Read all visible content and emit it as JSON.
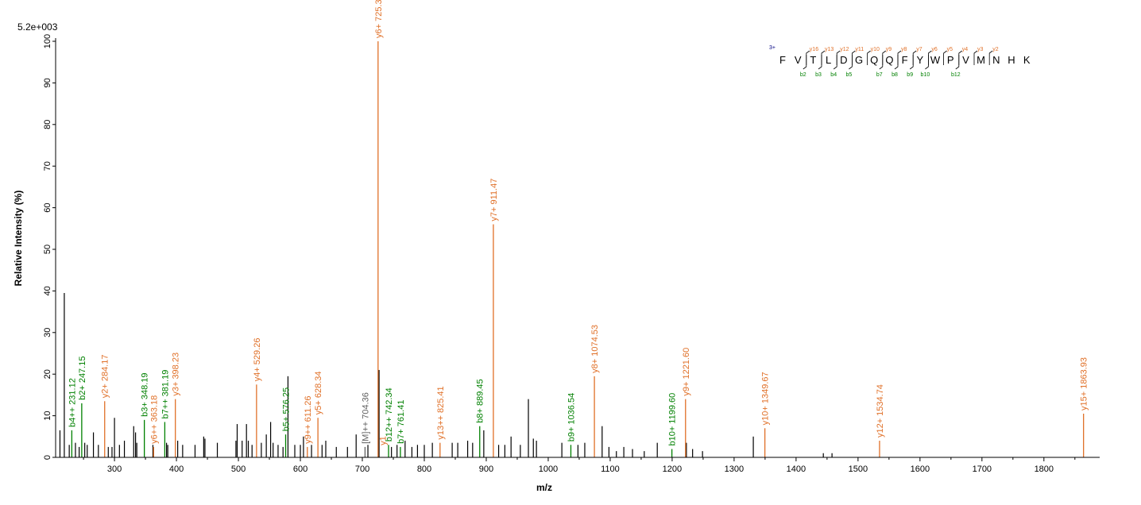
{
  "chart_data": {
    "type": "bar",
    "scale_max_label": "5.2e+003",
    "ylabel": "Relative   Intensity (%)",
    "xlabel": "m/z",
    "xlim": [
      205,
      1890
    ],
    "ylim": [
      0,
      100
    ],
    "x_ticks": [
      300,
      400,
      500,
      600,
      700,
      800,
      900,
      1000,
      1100,
      1200,
      1300,
      1400,
      1500,
      1600,
      1700,
      1800
    ],
    "y_ticks": [
      0,
      10,
      20,
      30,
      40,
      50,
      60,
      70,
      80,
      90,
      100
    ],
    "colors": {
      "unassigned": "#000000",
      "b_ion": "#008000",
      "y_ion": "#e07028",
      "precursor": "#606060",
      "charge": "#000080"
    },
    "annotated_peaks": [
      {
        "mz": 231.12,
        "intensity": 6.5,
        "ion": "b",
        "label": "b4++ 231.12"
      },
      {
        "mz": 247.15,
        "intensity": 13,
        "ion": "b",
        "label": "b2+ 247.15"
      },
      {
        "mz": 284.17,
        "intensity": 13.5,
        "ion": "y",
        "label": "y2+ 284.17"
      },
      {
        "mz": 348.19,
        "intensity": 9,
        "ion": "b",
        "label": "b3+ 348.19"
      },
      {
        "mz": 363.18,
        "intensity": 2.5,
        "ion": "y",
        "label": "y6++ 363.18"
      },
      {
        "mz": 381.19,
        "intensity": 8.5,
        "ion": "b",
        "label": "b7++ 381.19"
      },
      {
        "mz": 398.23,
        "intensity": 14,
        "ion": "y",
        "label": "y3+ 398.23"
      },
      {
        "mz": 529.26,
        "intensity": 17.5,
        "ion": "y",
        "label": "y4+ 529.26"
      },
      {
        "mz": 576.25,
        "intensity": 5.5,
        "ion": "b",
        "label": "b5+ 576.25"
      },
      {
        "mz": 611.26,
        "intensity": 2.5,
        "ion": "y",
        "label": "y9++ 611.26"
      },
      {
        "mz": 628.34,
        "intensity": 9.5,
        "ion": "y",
        "label": "y5+ 628.34"
      },
      {
        "mz": 704.36,
        "intensity": 2.5,
        "ion": "precursor",
        "label": "[M]++ 704.36"
      },
      {
        "mz": 725.39,
        "intensity": 100,
        "ion": "y",
        "label": "y6+ 725.39"
      },
      {
        "mz": 742.34,
        "intensity": 3,
        "ion": "b",
        "label": "b12++ 742.34"
      },
      {
        "mz": 761.41,
        "intensity": 2.5,
        "ion": "b",
        "label": "b7+ 761.41"
      },
      {
        "mz": 825.41,
        "intensity": 3.5,
        "ion": "y",
        "label": "y13++ 825.41"
      },
      {
        "mz": 889.45,
        "intensity": 7.5,
        "ion": "b",
        "label": "b8+ 889.45"
      },
      {
        "mz": 911.47,
        "intensity": 56,
        "ion": "y",
        "label": "y7+ 911.47"
      },
      {
        "mz": 1036.54,
        "intensity": 3,
        "ion": "b",
        "label": "b9+ 1036.54"
      },
      {
        "mz": 1074.53,
        "intensity": 19.5,
        "ion": "y",
        "label": "y8+ 1074.53"
      },
      {
        "mz": 1199.6,
        "intensity": 2,
        "ion": "b",
        "label": "b10+ 1199.60"
      },
      {
        "mz": 1221.6,
        "intensity": 14,
        "ion": "y",
        "label": "y9+ 1221.60"
      },
      {
        "mz": 1349.67,
        "intensity": 7,
        "ion": "y",
        "label": "y10+ 1349.67"
      },
      {
        "mz": 1534.74,
        "intensity": 4,
        "ion": "y",
        "label": "y12+ 1534.74"
      },
      {
        "mz": 1863.93,
        "intensity": 10.5,
        "ion": "y",
        "label": "y15+ 1863.93"
      }
    ],
    "small_annotation": {
      "mz": 733,
      "label": "y1"
    },
    "unassigned_peaks": [
      {
        "mz": 212,
        "intensity": 6.5
      },
      {
        "mz": 219,
        "intensity": 39.5
      },
      {
        "mz": 227,
        "intensity": 3
      },
      {
        "mz": 237,
        "intensity": 3.5
      },
      {
        "mz": 243,
        "intensity": 2.5
      },
      {
        "mz": 252,
        "intensity": 3.5
      },
      {
        "mz": 256,
        "intensity": 3
      },
      {
        "mz": 266,
        "intensity": 6
      },
      {
        "mz": 274,
        "intensity": 3
      },
      {
        "mz": 290,
        "intensity": 2.5
      },
      {
        "mz": 296,
        "intensity": 2.5
      },
      {
        "mz": 300,
        "intensity": 9.5
      },
      {
        "mz": 308,
        "intensity": 3
      },
      {
        "mz": 316,
        "intensity": 4
      },
      {
        "mz": 331,
        "intensity": 7.5
      },
      {
        "mz": 334,
        "intensity": 6
      },
      {
        "mz": 336,
        "intensity": 3.5
      },
      {
        "mz": 362,
        "intensity": 3
      },
      {
        "mz": 384,
        "intensity": 3.5
      },
      {
        "mz": 386,
        "intensity": 3
      },
      {
        "mz": 402,
        "intensity": 4
      },
      {
        "mz": 410,
        "intensity": 3
      },
      {
        "mz": 430,
        "intensity": 3
      },
      {
        "mz": 444,
        "intensity": 5
      },
      {
        "mz": 446,
        "intensity": 4.5
      },
      {
        "mz": 466,
        "intensity": 3.5
      },
      {
        "mz": 496,
        "intensity": 4
      },
      {
        "mz": 498,
        "intensity": 8
      },
      {
        "mz": 506,
        "intensity": 4
      },
      {
        "mz": 513,
        "intensity": 8
      },
      {
        "mz": 516,
        "intensity": 4
      },
      {
        "mz": 522,
        "intensity": 3
      },
      {
        "mz": 537,
        "intensity": 3.5
      },
      {
        "mz": 545,
        "intensity": 5.5
      },
      {
        "mz": 552,
        "intensity": 8.5
      },
      {
        "mz": 556,
        "intensity": 3.5
      },
      {
        "mz": 564,
        "intensity": 3
      },
      {
        "mz": 572,
        "intensity": 2.5
      },
      {
        "mz": 580,
        "intensity": 19.5
      },
      {
        "mz": 591,
        "intensity": 3
      },
      {
        "mz": 600,
        "intensity": 3
      },
      {
        "mz": 605,
        "intensity": 5
      },
      {
        "mz": 618,
        "intensity": 3
      },
      {
        "mz": 635,
        "intensity": 3
      },
      {
        "mz": 641,
        "intensity": 4
      },
      {
        "mz": 658,
        "intensity": 2.5
      },
      {
        "mz": 676,
        "intensity": 2.5
      },
      {
        "mz": 690,
        "intensity": 5.5
      },
      {
        "mz": 709,
        "intensity": 3
      },
      {
        "mz": 727,
        "intensity": 21
      },
      {
        "mz": 747,
        "intensity": 2.5
      },
      {
        "mz": 756,
        "intensity": 3
      },
      {
        "mz": 769,
        "intensity": 4
      },
      {
        "mz": 780,
        "intensity": 2.5
      },
      {
        "mz": 789,
        "intensity": 3
      },
      {
        "mz": 800,
        "intensity": 3
      },
      {
        "mz": 813,
        "intensity": 3.5
      },
      {
        "mz": 845,
        "intensity": 3.5
      },
      {
        "mz": 854,
        "intensity": 3.5
      },
      {
        "mz": 870,
        "intensity": 4
      },
      {
        "mz": 878,
        "intensity": 3.5
      },
      {
        "mz": 896,
        "intensity": 6.5
      },
      {
        "mz": 920,
        "intensity": 3
      },
      {
        "mz": 930,
        "intensity": 3
      },
      {
        "mz": 940,
        "intensity": 5
      },
      {
        "mz": 955,
        "intensity": 3
      },
      {
        "mz": 968,
        "intensity": 14
      },
      {
        "mz": 976,
        "intensity": 4.5
      },
      {
        "mz": 981,
        "intensity": 4
      },
      {
        "mz": 1022,
        "intensity": 3.5
      },
      {
        "mz": 1048,
        "intensity": 3
      },
      {
        "mz": 1059,
        "intensity": 3.5
      },
      {
        "mz": 1087,
        "intensity": 7.5
      },
      {
        "mz": 1098,
        "intensity": 2.5
      },
      {
        "mz": 1110,
        "intensity": 1.5
      },
      {
        "mz": 1122,
        "intensity": 2.5
      },
      {
        "mz": 1136,
        "intensity": 2
      },
      {
        "mz": 1155,
        "intensity": 1.5
      },
      {
        "mz": 1176,
        "intensity": 3.5
      },
      {
        "mz": 1223,
        "intensity": 3.5
      },
      {
        "mz": 1233,
        "intensity": 2
      },
      {
        "mz": 1249,
        "intensity": 1.5
      },
      {
        "mz": 1331,
        "intensity": 5
      },
      {
        "mz": 1444,
        "intensity": 1
      },
      {
        "mz": 1458,
        "intensity": 1
      }
    ],
    "sequence": {
      "charge": "3+",
      "residues": [
        "F",
        "V",
        "T",
        "L",
        "D",
        "G",
        "Q",
        "Q",
        "F",
        "Y",
        "W",
        "P",
        "V",
        "M",
        "N",
        "H",
        "K"
      ],
      "y_ions": [
        "y16",
        "y13",
        "y12",
        "y11",
        "y10",
        "y9",
        "y8",
        "y7",
        "y6",
        "y5",
        "y4",
        "y3",
        "y2"
      ],
      "b_ions": [
        "b2",
        "b3",
        "b4",
        "b5",
        "b7",
        "b8",
        "b9",
        "b10",
        "b12"
      ]
    }
  }
}
